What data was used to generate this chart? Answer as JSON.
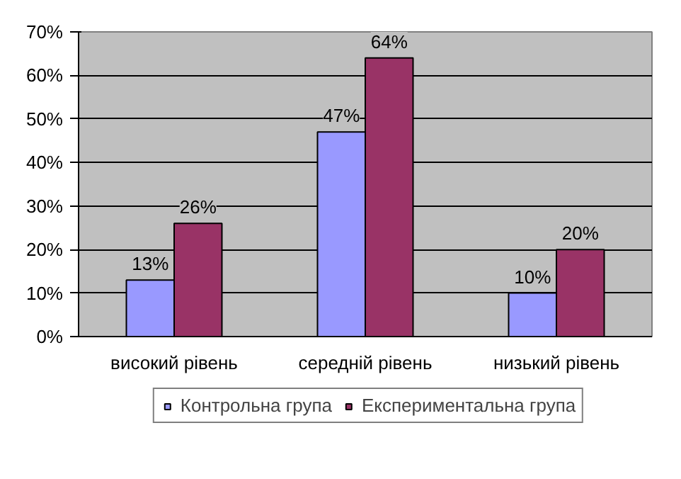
{
  "chart_data": {
    "type": "bar",
    "categories": [
      "високий рівень",
      "середній рівень",
      "низький рівень"
    ],
    "series": [
      {
        "name": "Контрольна група",
        "color": "#9999ff",
        "values": [
          13,
          47,
          10
        ],
        "value_labels": [
          "13%",
          "47%",
          "10%"
        ]
      },
      {
        "name": "Експериментальна група",
        "color": "#993366",
        "values": [
          26,
          64,
          20
        ],
        "value_labels": [
          "26%",
          "64%",
          "20%"
        ]
      }
    ],
    "ylim": [
      0,
      70
    ],
    "yticks": [
      {
        "value": 0,
        "label": "0%"
      },
      {
        "value": 10,
        "label": "10%"
      },
      {
        "value": 20,
        "label": "20%"
      },
      {
        "value": 30,
        "label": "30%"
      },
      {
        "value": 40,
        "label": "40%"
      },
      {
        "value": 50,
        "label": "50%"
      },
      {
        "value": 60,
        "label": "60%"
      },
      {
        "value": 70,
        "label": "70%"
      }
    ],
    "grid": "y",
    "legend": "bottom"
  }
}
